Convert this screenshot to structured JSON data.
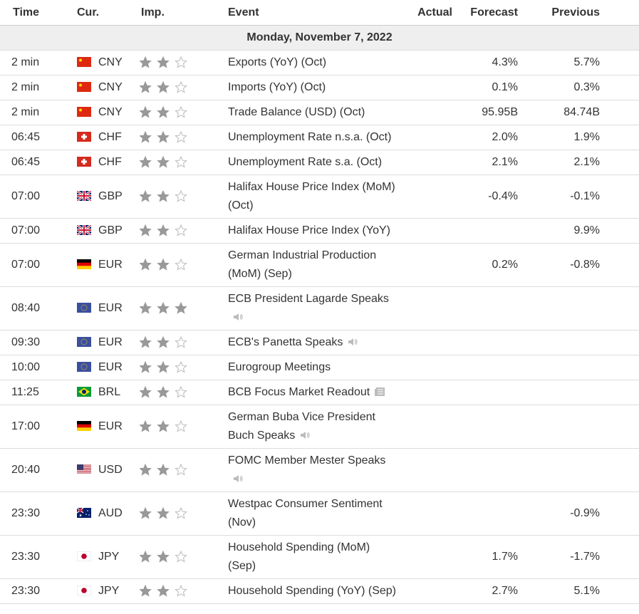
{
  "header": {
    "time": "Time",
    "currency": "Cur.",
    "importance": "Imp.",
    "event": "Event",
    "actual": "Actual",
    "forecast": "Forecast",
    "previous": "Previous"
  },
  "date": "Monday, November 7, 2022",
  "rows": [
    {
      "time": "2 min",
      "currency": "CNY",
      "importance": 2,
      "event": "Exports (YoY) (Oct)",
      "forecast": "4.3%",
      "previous": "5.7%"
    },
    {
      "time": "2 min",
      "currency": "CNY",
      "importance": 2,
      "event": "Imports (YoY) (Oct)",
      "forecast": "0.1%",
      "previous": "0.3%"
    },
    {
      "time": "2 min",
      "currency": "CNY",
      "importance": 2,
      "event": "Trade Balance (USD) (Oct)",
      "forecast": "95.95B",
      "previous": "84.74B"
    },
    {
      "time": "06:45",
      "currency": "CHF",
      "importance": 2,
      "event": "Unemployment Rate n.s.a. (Oct)",
      "forecast": "2.0%",
      "previous": "1.9%"
    },
    {
      "time": "06:45",
      "currency": "CHF",
      "importance": 2,
      "event": "Unemployment Rate s.a. (Oct)",
      "forecast": "2.1%",
      "previous": "2.1%"
    },
    {
      "time": "07:00",
      "currency": "GBP",
      "importance": 2,
      "event": "Halifax House Price Index (MoM) (Oct)",
      "forecast": "-0.4%",
      "previous": "-0.1%"
    },
    {
      "time": "07:00",
      "currency": "GBP",
      "importance": 2,
      "event": "Halifax House Price Index (YoY)",
      "previous": "9.9%"
    },
    {
      "time": "07:00",
      "currency": "EUR",
      "importance": 2,
      "event": "German Industrial Production (MoM) (Sep)",
      "forecast": "0.2%",
      "previous": "-0.8%"
    },
    {
      "time": "08:40",
      "currency": "EUR",
      "importance": 3,
      "event": "ECB President Lagarde Speaks"
    },
    {
      "time": "09:30",
      "currency": "EUR",
      "importance": 2,
      "event": "ECB's Panetta Speaks"
    },
    {
      "time": "10:00",
      "currency": "EUR",
      "importance": 2,
      "event": "Eurogroup Meetings"
    },
    {
      "time": "11:25",
      "currency": "BRL",
      "importance": 2,
      "event": "BCB Focus Market Readout"
    },
    {
      "time": "17:00",
      "currency": "EUR",
      "importance": 2,
      "event": "German Buba Vice President Buch Speaks"
    },
    {
      "time": "20:40",
      "currency": "USD",
      "importance": 2,
      "event": "FOMC Member Mester Speaks"
    },
    {
      "time": "23:30",
      "currency": "AUD",
      "importance": 2,
      "event": "Westpac Consumer Sentiment (Nov)",
      "previous": "-0.9%"
    },
    {
      "time": "23:30",
      "currency": "JPY",
      "importance": 2,
      "event": "Household Spending (MoM) (Sep)",
      "forecast": "1.7%",
      "previous": "-1.7%"
    },
    {
      "time": "23:30",
      "currency": "JPY",
      "importance": 2,
      "event": "Household Spending (YoY) (Sep)",
      "forecast": "2.7%",
      "previous": "5.1%"
    }
  ]
}
